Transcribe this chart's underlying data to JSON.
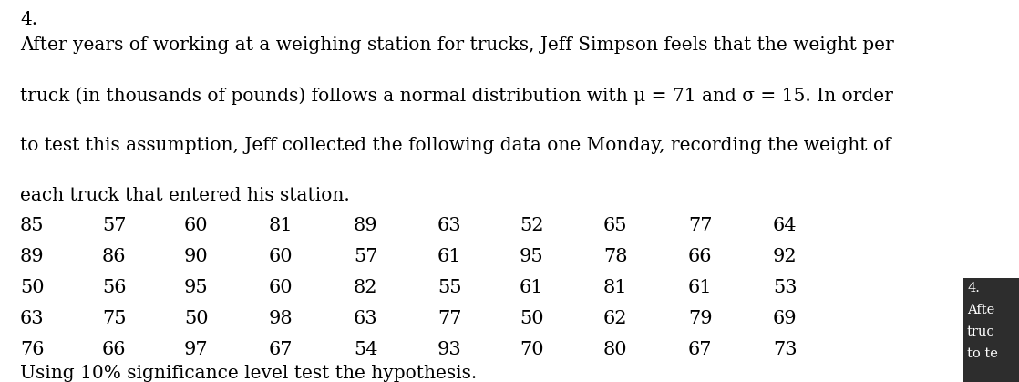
{
  "problem_number": "4.",
  "paragraph1": "After years of working at a weighing station for trucks, Jeff Simpson feels that the weight per",
  "paragraph2": "truck (in thousands of pounds) follows a normal distribution with μ = 71 and σ = 15. In order",
  "paragraph3": "to test this assumption, Jeff collected the following data one Monday, recording the weight of",
  "paragraph4": "each truck that entered his station.",
  "data_rows": [
    [
      85,
      57,
      60,
      81,
      89,
      63,
      52,
      65,
      77,
      64
    ],
    [
      89,
      86,
      90,
      60,
      57,
      61,
      95,
      78,
      66,
      92
    ],
    [
      50,
      56,
      95,
      60,
      82,
      55,
      61,
      81,
      61,
      53
    ],
    [
      63,
      75,
      50,
      98,
      63,
      77,
      50,
      62,
      79,
      69
    ],
    [
      76,
      66,
      97,
      67,
      54,
      93,
      70,
      80,
      67,
      73
    ]
  ],
  "footer": "Using 10% significance level test the hypothesis.",
  "side_label_lines": [
    "4.",
    "Afte",
    "truc",
    "to te"
  ],
  "bg_color": "#ffffff",
  "text_color": "#000000",
  "font_size_paragraph": 14.5,
  "font_size_data": 15.0,
  "font_size_footer": 14.5,
  "font_size_side": 10.5,
  "side_box_color": "#2d2d2d",
  "side_text_color": "#ffffff"
}
